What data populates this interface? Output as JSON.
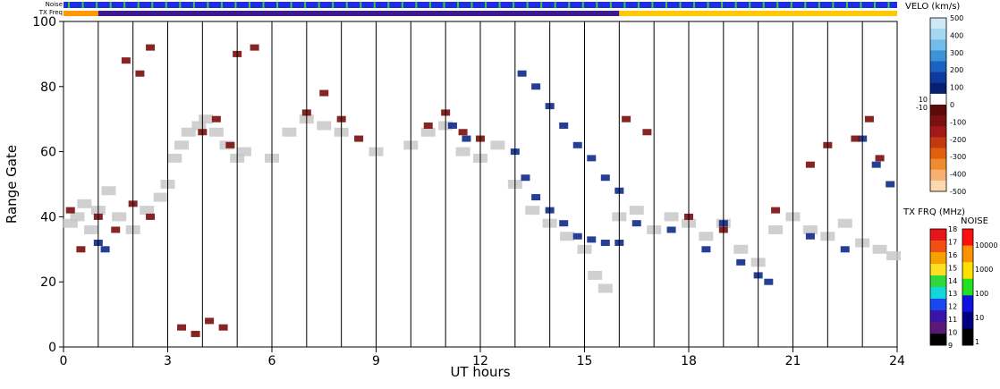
{
  "chart_data": {
    "type": "heatmap",
    "title": "",
    "xlabel": "UT hours",
    "ylabel": "Range Gate",
    "xlim": [
      0,
      24
    ],
    "ylim": [
      0,
      100
    ],
    "x_ticks": [
      "0",
      "3",
      "6",
      "9",
      "12",
      "15",
      "18",
      "21",
      "24"
    ],
    "y_ticks": [
      "0",
      "20",
      "40",
      "60",
      "80",
      "100"
    ],
    "grid": "vertical hourly lines",
    "top_bars": {
      "noise_label": "Noise",
      "txfreq_label": "TX Freq",
      "txfreq_segments": [
        {
          "from": 0,
          "to": 1,
          "color": "#ff9900"
        },
        {
          "from": 1,
          "to": 16,
          "color": "#3b1a8a"
        },
        {
          "from": 16,
          "to": 24,
          "color": "#ffc800"
        }
      ]
    },
    "velocity_scale": {
      "title": "VELO (km/s)",
      "ticks": [
        "500",
        "400",
        "300",
        "200",
        "100",
        "0",
        "-100",
        "-200",
        "-300",
        "-400",
        "-500"
      ],
      "ground_labels": [
        "10",
        "-10"
      ],
      "colors_top_to_bottom": [
        "#cfe8f8",
        "#a6d6f2",
        "#73bbe8",
        "#3d93d8",
        "#1a62c0",
        "#0d3a9c",
        "#071f73",
        "#ffffff",
        "#5c0b0b",
        "#7d1010",
        "#a31818",
        "#c23a10",
        "#e06010",
        "#f08c30",
        "#f8b070",
        "#fcd8b0"
      ]
    },
    "txfreq_scale": {
      "title": "TX FRQ (MHz)",
      "ticks": [
        "18",
        "17",
        "16",
        "15",
        "14",
        "13",
        "12",
        "11",
        "10",
        "9"
      ],
      "colors_top_to_bottom": [
        "#e8141c",
        "#f05014",
        "#f8a000",
        "#ffe020",
        "#30d840",
        "#10d8d8",
        "#1848f0",
        "#3a14a8",
        "#5a1878",
        "#000000"
      ]
    },
    "noise_scale": {
      "title": "NOISE",
      "ticks": [
        "10000",
        "1000",
        "100",
        "10",
        "1"
      ],
      "colors_top_to_bottom": [
        "#ff1010",
        "#ff9000",
        "#ffe000",
        "#20e020",
        "#1010e0",
        "#000080",
        "#000000"
      ]
    },
    "series": [
      {
        "kind": "ground",
        "color": "#c8c8c8",
        "points": [
          [
            0.2,
            38
          ],
          [
            0.4,
            40
          ],
          [
            0.6,
            44
          ],
          [
            0.8,
            36
          ],
          [
            1.0,
            42
          ],
          [
            1.3,
            48
          ],
          [
            1.6,
            40
          ],
          [
            2.0,
            36
          ],
          [
            2.4,
            42
          ],
          [
            2.8,
            46
          ],
          [
            3.0,
            50
          ],
          [
            3.2,
            58
          ],
          [
            3.4,
            62
          ],
          [
            3.6,
            66
          ],
          [
            3.9,
            68
          ],
          [
            4.1,
            70
          ],
          [
            4.4,
            66
          ],
          [
            4.7,
            62
          ],
          [
            5.0,
            58
          ],
          [
            5.2,
            60
          ],
          [
            6.0,
            58
          ],
          [
            6.5,
            66
          ],
          [
            7.0,
            70
          ],
          [
            7.5,
            68
          ],
          [
            8.0,
            66
          ],
          [
            9.0,
            60
          ],
          [
            10.0,
            62
          ],
          [
            10.5,
            66
          ],
          [
            11.0,
            68
          ],
          [
            11.5,
            60
          ],
          [
            12.0,
            58
          ],
          [
            12.5,
            62
          ],
          [
            13.0,
            50
          ],
          [
            13.5,
            42
          ],
          [
            14.0,
            38
          ],
          [
            14.5,
            34
          ],
          [
            15.0,
            30
          ],
          [
            15.3,
            22
          ],
          [
            15.6,
            18
          ],
          [
            16.0,
            40
          ],
          [
            16.5,
            42
          ],
          [
            17.0,
            36
          ],
          [
            17.5,
            40
          ],
          [
            18.0,
            38
          ],
          [
            18.5,
            34
          ],
          [
            19.0,
            38
          ],
          [
            19.5,
            30
          ],
          [
            20.0,
            26
          ],
          [
            20.5,
            36
          ],
          [
            21.0,
            40
          ],
          [
            21.5,
            36
          ],
          [
            22.0,
            34
          ],
          [
            22.5,
            38
          ],
          [
            23.0,
            32
          ],
          [
            23.5,
            30
          ],
          [
            23.9,
            28
          ]
        ]
      },
      {
        "kind": "positive",
        "color": "#0d2a8a",
        "points": [
          [
            1.0,
            32
          ],
          [
            1.2,
            30
          ],
          [
            13.0,
            60
          ],
          [
            13.3,
            52
          ],
          [
            13.6,
            46
          ],
          [
            14.0,
            42
          ],
          [
            14.4,
            38
          ],
          [
            14.8,
            34
          ],
          [
            15.2,
            33
          ],
          [
            15.6,
            32
          ],
          [
            16.0,
            32
          ],
          [
            13.2,
            84
          ],
          [
            13.6,
            80
          ],
          [
            14.0,
            74
          ],
          [
            14.4,
            68
          ],
          [
            14.8,
            62
          ],
          [
            15.2,
            58
          ],
          [
            15.6,
            52
          ],
          [
            16.0,
            48
          ],
          [
            16.5,
            38
          ],
          [
            17.5,
            36
          ],
          [
            18.5,
            30
          ],
          [
            19.0,
            38
          ],
          [
            19.5,
            26
          ],
          [
            20.0,
            22
          ],
          [
            20.3,
            20
          ],
          [
            21.5,
            34
          ],
          [
            22.5,
            30
          ],
          [
            23.0,
            64
          ],
          [
            23.4,
            56
          ],
          [
            23.8,
            50
          ],
          [
            11.2,
            68
          ],
          [
            11.6,
            64
          ]
        ]
      },
      {
        "kind": "negative",
        "color": "#7a0c0c",
        "points": [
          [
            0.2,
            42
          ],
          [
            0.5,
            30
          ],
          [
            1.0,
            40
          ],
          [
            1.5,
            36
          ],
          [
            2.0,
            44
          ],
          [
            2.5,
            40
          ],
          [
            1.8,
            88
          ],
          [
            2.2,
            84
          ],
          [
            2.5,
            92
          ],
          [
            4.0,
            66
          ],
          [
            4.4,
            70
          ],
          [
            4.8,
            62
          ],
          [
            5.0,
            90
          ],
          [
            5.5,
            92
          ],
          [
            7.0,
            72
          ],
          [
            7.5,
            78
          ],
          [
            8.0,
            70
          ],
          [
            8.5,
            64
          ],
          [
            10.5,
            68
          ],
          [
            11.0,
            72
          ],
          [
            11.5,
            66
          ],
          [
            12.0,
            64
          ],
          [
            3.4,
            6
          ],
          [
            3.8,
            4
          ],
          [
            4.2,
            8
          ],
          [
            4.6,
            6
          ],
          [
            16.2,
            70
          ],
          [
            16.8,
            66
          ],
          [
            18.0,
            40
          ],
          [
            19.0,
            36
          ],
          [
            20.5,
            42
          ],
          [
            21.5,
            56
          ],
          [
            22.0,
            62
          ],
          [
            22.8,
            64
          ],
          [
            23.2,
            70
          ],
          [
            23.5,
            58
          ]
        ]
      }
    ]
  }
}
